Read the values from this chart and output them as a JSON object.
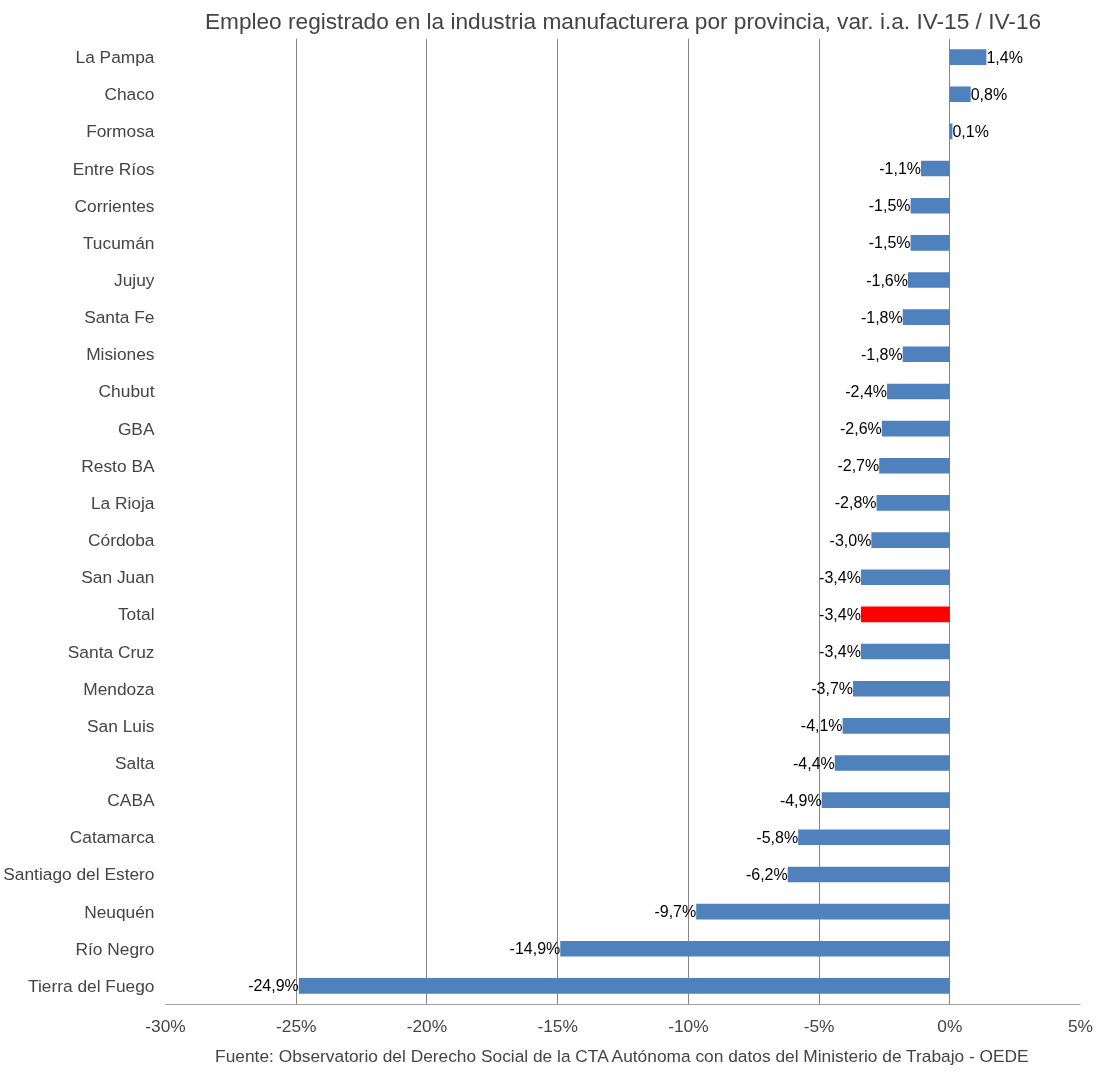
{
  "chart_data": {
    "type": "bar",
    "orientation": "horizontal",
    "title": "Empleo registrado en la industria manufacturera por provincia, var. i.a. IV-15 / IV-16",
    "categories": [
      "La Pampa",
      "Chaco",
      "Formosa",
      "Entre Ríos",
      "Corrientes",
      "Tucumán",
      "Jujuy",
      "Santa Fe",
      "Misiones",
      "Chubut",
      "GBA",
      "Resto BA",
      "La Rioja",
      "Córdoba",
      "San Juan",
      "Total",
      "Santa Cruz",
      "Mendoza",
      "San Luis",
      "Salta",
      "CABA",
      "Catamarca",
      "Santiago del Estero",
      "Neuquén",
      "Río Negro",
      "Tierra del Fuego"
    ],
    "values": [
      1.4,
      0.8,
      0.1,
      -1.1,
      -1.5,
      -1.5,
      -1.6,
      -1.8,
      -1.8,
      -2.4,
      -2.6,
      -2.7,
      -2.8,
      -3.0,
      -3.4,
      -3.4,
      -3.4,
      -3.7,
      -4.1,
      -4.4,
      -4.9,
      -5.8,
      -6.2,
      -9.7,
      -14.9,
      -24.9
    ],
    "value_labels": [
      "1,4%",
      "0,8%",
      "0,1%",
      "-1,1%",
      "-1,5%",
      "-1,5%",
      "-1,6%",
      "-1,8%",
      "-1,8%",
      "-2,4%",
      "-2,6%",
      "-2,7%",
      "-2,8%",
      "-3,0%",
      "-3,4%",
      "-3,4%",
      "-3,4%",
      "-3,7%",
      "-4,1%",
      "-4,4%",
      "-4,9%",
      "-5,8%",
      "-6,2%",
      "-9,7%",
      "-14,9%",
      "-24,9%"
    ],
    "colors": [
      "#4f81bd",
      "#4f81bd",
      "#4f81bd",
      "#4f81bd",
      "#4f81bd",
      "#4f81bd",
      "#4f81bd",
      "#4f81bd",
      "#4f81bd",
      "#4f81bd",
      "#4f81bd",
      "#4f81bd",
      "#4f81bd",
      "#4f81bd",
      "#4f81bd",
      "#ff0000",
      "#4f81bd",
      "#4f81bd",
      "#4f81bd",
      "#4f81bd",
      "#4f81bd",
      "#4f81bd",
      "#4f81bd",
      "#4f81bd",
      "#4f81bd",
      "#4f81bd"
    ],
    "xlim": [
      -30,
      5
    ],
    "xticks": [
      {
        "value": -30,
        "label": "-30%"
      },
      {
        "value": -25,
        "label": "-25%"
      },
      {
        "value": -20,
        "label": "-20%"
      },
      {
        "value": -15,
        "label": "-15%"
      },
      {
        "value": -10,
        "label": "-10%"
      },
      {
        "value": -5,
        "label": "-5%"
      },
      {
        "value": 0,
        "label": "0%"
      },
      {
        "value": 5,
        "label": "5%"
      }
    ],
    "grid": "x",
    "annotations": [
      "Fuente: Observatorio del Derecho Social de la CTA Autónoma con datos del Ministerio de Trabajo - OEDE"
    ]
  }
}
